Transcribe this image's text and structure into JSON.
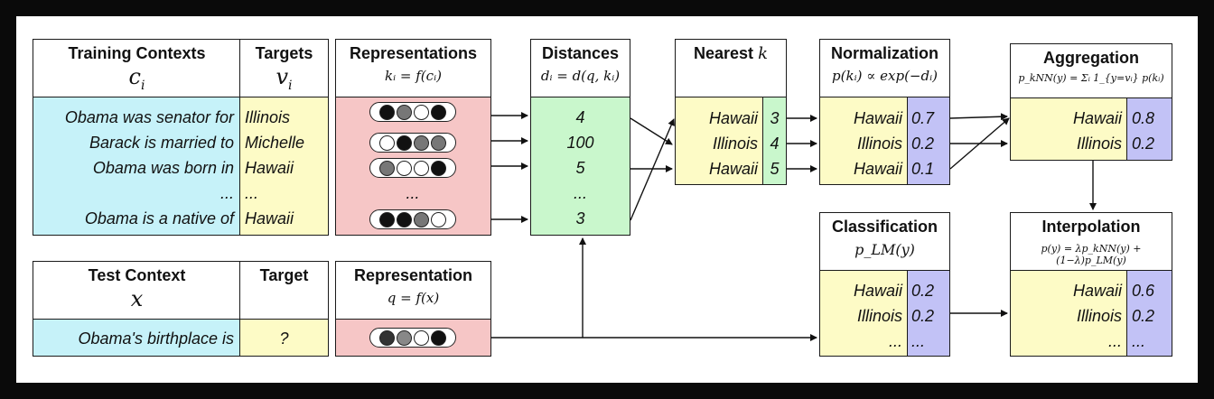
{
  "training": {
    "title": "Training Contexts",
    "symbol": "c",
    "sub": "i",
    "rows": [
      "Obama was senator for",
      "Barack is married to",
      "Obama was born in",
      "...",
      "Obama is a native of"
    ]
  },
  "targets": {
    "title": "Targets",
    "symbol": "v",
    "sub": "i",
    "rows": [
      "Illinois",
      "Michelle",
      "Hawaii",
      "...",
      "Hawaii"
    ]
  },
  "representations": {
    "title": "Representations",
    "formula": "kᵢ = f(cᵢ)",
    "pills": [
      [
        "#111",
        "#777",
        "#fff",
        "#111"
      ],
      [
        "#fff",
        "#111",
        "#777",
        "#777"
      ],
      [
        "#777",
        "#fff",
        "#fff",
        "#111"
      ],
      null,
      [
        "#111",
        "#111",
        "#777",
        "#fff"
      ]
    ],
    "ellipsis": "..."
  },
  "distances": {
    "title": "Distances",
    "formula": "dᵢ = d(q, kᵢ)",
    "rows": [
      "4",
      "100",
      "5",
      "...",
      "3"
    ]
  },
  "nearest": {
    "title": "Nearest",
    "k": "k",
    "rows": [
      [
        "Hawaii",
        "3"
      ],
      [
        "Illinois",
        "4"
      ],
      [
        "Hawaii",
        "5"
      ]
    ]
  },
  "normalization": {
    "title": "Normalization",
    "formula": "p(kᵢ) ∝ exp(−dᵢ)",
    "rows": [
      [
        "Hawaii",
        "0.7"
      ],
      [
        "Illinois",
        "0.2"
      ],
      [
        "Hawaii",
        "0.1"
      ]
    ]
  },
  "aggregation": {
    "title": "Aggregation",
    "formula": "p_kNN(y) = Σᵢ 1_{y=vᵢ} p(kᵢ)",
    "rows": [
      [
        "Hawaii",
        "0.8"
      ],
      [
        "Illinois",
        "0.2"
      ]
    ]
  },
  "classification": {
    "title": "Classification",
    "formula": "p_LM(y)",
    "rows": [
      [
        "Hawaii",
        "0.2"
      ],
      [
        "Illinois",
        "0.2"
      ],
      [
        "...",
        "..."
      ]
    ]
  },
  "interpolation": {
    "title": "Interpolation",
    "formula": "p(y) = λp_kNN(y) + (1−λ)p_LM(y)",
    "rows": [
      [
        "Hawaii",
        "0.6"
      ],
      [
        "Illinois",
        "0.2"
      ],
      [
        "...",
        "..."
      ]
    ]
  },
  "test": {
    "title": "Test Context",
    "symbol": "x",
    "row": "Obama's birthplace is"
  },
  "target": {
    "title": "Target",
    "row": "?"
  },
  "representation": {
    "title": "Representation",
    "formula": "q = f(x)",
    "pill": [
      "#333",
      "#888",
      "#fff",
      "#111"
    ]
  }
}
